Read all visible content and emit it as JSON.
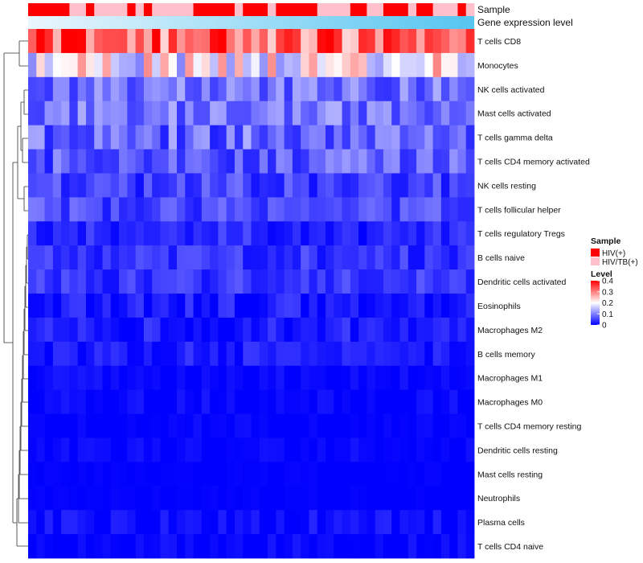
{
  "chart_data": {
    "type": "heatmap",
    "n_samples": 54,
    "rows": [
      {
        "label": "T cells CD8"
      },
      {
        "label": "Monocytes"
      },
      {
        "label": "NK cells activated"
      },
      {
        "label": "Mast cells activated"
      },
      {
        "label": "T cells gamma delta"
      },
      {
        "label": "T cells CD4 memory activated"
      },
      {
        "label": "NK cells resting"
      },
      {
        "label": "T cells follicular helper"
      },
      {
        "label": "T cells regulatory  Tregs"
      },
      {
        "label": "B cells naive"
      },
      {
        "label": "Dendritic cells activated"
      },
      {
        "label": "Eosinophils"
      },
      {
        "label": "Macrophages M2"
      },
      {
        "label": "B cells memory"
      },
      {
        "label": "Macrophages M1"
      },
      {
        "label": "Macrophages M0"
      },
      {
        "label": "T cells CD4 memory resting"
      },
      {
        "label": "Dendritic cells resting"
      },
      {
        "label": "Mast cells resting"
      },
      {
        "label": "Neutrophils"
      },
      {
        "label": "Plasma cells"
      },
      {
        "label": "T cells CD4 naive"
      }
    ],
    "row_stats": [
      {
        "mean": 0.32,
        "spread": 0.09
      },
      {
        "mean": 0.2,
        "spread": 0.1
      },
      {
        "mean": 0.09,
        "spread": 0.05
      },
      {
        "mean": 0.09,
        "spread": 0.05
      },
      {
        "mean": 0.08,
        "spread": 0.06
      },
      {
        "mean": 0.07,
        "spread": 0.05
      },
      {
        "mean": 0.05,
        "spread": 0.04
      },
      {
        "mean": 0.06,
        "spread": 0.04
      },
      {
        "mean": 0.03,
        "spread": 0.03
      },
      {
        "mean": 0.04,
        "spread": 0.03
      },
      {
        "mean": 0.04,
        "spread": 0.03
      },
      {
        "mean": 0.02,
        "spread": 0.03
      },
      {
        "mean": 0.02,
        "spread": 0.03
      },
      {
        "mean": 0.02,
        "spread": 0.025
      },
      {
        "mean": 0.005,
        "spread": 0.015
      },
      {
        "mean": 0.005,
        "spread": 0.015
      },
      {
        "mean": 0.003,
        "spread": 0.01
      },
      {
        "mean": 0.004,
        "spread": 0.012
      },
      {
        "mean": 0.001,
        "spread": 0.004
      },
      {
        "mean": 0.001,
        "spread": 0.004
      },
      {
        "mean": 0.01,
        "spread": 0.02
      },
      {
        "mean": 0.004,
        "spread": 0.015
      }
    ],
    "sample_groups": [
      "HIV(+)",
      "HIV(+)",
      "HIV(+)",
      "HIV(+)",
      "HIV(+)",
      "HIV/TB(+)",
      "HIV/TB(+)",
      "HIV(+)",
      "HIV/TB(+)",
      "HIV/TB(+)",
      "HIV/TB(+)",
      "HIV/TB(+)",
      "HIV(+)",
      "HIV/TB(+)",
      "HIV(+)",
      "HIV/TB(+)",
      "HIV/TB(+)",
      "HIV/TB(+)",
      "HIV/TB(+)",
      "HIV/TB(+)",
      "HIV(+)",
      "HIV(+)",
      "HIV(+)",
      "HIV(+)",
      "HIV(+)",
      "HIV/TB(+)",
      "HIV(+)",
      "HIV(+)",
      "HIV(+)",
      "HIV/TB(+)",
      "HIV(+)",
      "HIV(+)",
      "HIV(+)",
      "HIV(+)",
      "HIV(+)",
      "HIV/TB(+)",
      "HIV/TB(+)",
      "HIV/TB(+)",
      "HIV/TB(+)",
      "HIV(+)",
      "HIV(+)",
      "HIV/TB(+)",
      "HIV/TB(+)",
      "HIV(+)",
      "HIV(+)",
      "HIV(+)",
      "HIV/TB(+)",
      "HIV(+)",
      "HIV(+)",
      "HIV/TB(+)",
      "HIV/TB(+)",
      "HIV/TB(+)",
      "HIV(+)",
      "HIV/TB(+)"
    ],
    "annotation_labels": {
      "sample": "Sample",
      "expression": "Gene expression level"
    },
    "legend": {
      "sample_title": "Sample",
      "sample_entries": [
        {
          "label": "HIV(+)",
          "color": "#ff0000"
        },
        {
          "label": "HIV/TB(+)",
          "color": "#ffc0cb"
        }
      ],
      "level_title": "Level",
      "level_ticks": [
        "0.4",
        "0.3",
        "0.2",
        "0.1",
        "0"
      ],
      "level_tick_values": [
        0.4,
        0.3,
        0.2,
        0.1,
        0.0
      ]
    },
    "color_scale": {
      "low": "#0000ff",
      "mid": "#ffffff",
      "high": "#ff0000",
      "min": 0,
      "mid_value": 0.2,
      "max": 0.4
    },
    "expression_gradient": [
      "#eaf6fd",
      "#56c5f0"
    ],
    "dendrogram_color": "#333333"
  }
}
